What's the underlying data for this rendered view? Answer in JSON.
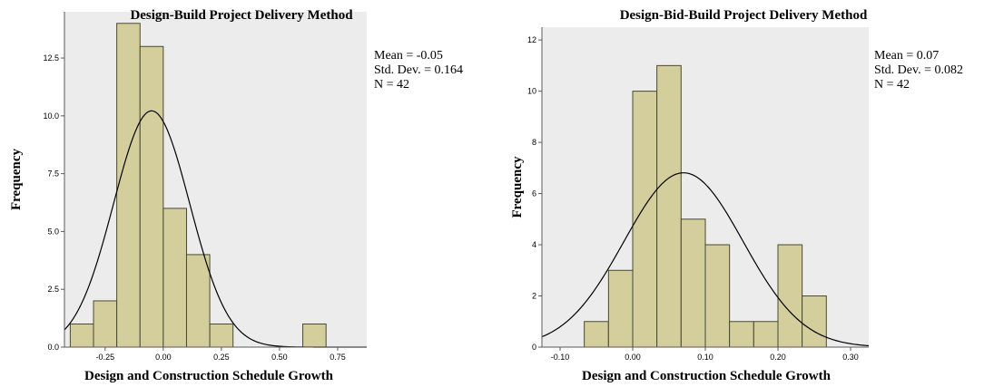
{
  "chart_data": [
    {
      "type": "bar",
      "title": "Design-Build Project Delivery Method",
      "xlabel": "Design and Construction Schedule Growth",
      "ylabel": "Frequency",
      "xlim": [
        -0.425,
        0.875
      ],
      "ylim": [
        0,
        14.5
      ],
      "x_ticks": [
        -0.25,
        0.0,
        0.25,
        0.5,
        0.75
      ],
      "x_tick_labels": [
        "-0.25",
        "0.00",
        "0.25",
        "0.50",
        "0.75"
      ],
      "y_ticks": [
        0,
        2.5,
        5,
        7.5,
        10,
        12.5
      ],
      "y_tick_labels": [
        "0.0",
        "2.5",
        "5.0",
        "7.5",
        "10.0",
        "12.5"
      ],
      "bin_width": 0.1,
      "bins": [
        {
          "start": -0.4,
          "count": 1
        },
        {
          "start": -0.3,
          "count": 2
        },
        {
          "start": -0.2,
          "count": 14
        },
        {
          "start": -0.1,
          "count": 13
        },
        {
          "start": 0.0,
          "count": 6
        },
        {
          "start": 0.1,
          "count": 4
        },
        {
          "start": 0.2,
          "count": 1
        },
        {
          "start": 0.6,
          "count": 1
        }
      ],
      "normal_curve": true,
      "stats": {
        "mean": -0.05,
        "sd": 0.164,
        "n": 42
      },
      "stats_text": [
        "Mean = -0.05",
        "Std. Dev. = 0.164",
        "N = 42"
      ]
    },
    {
      "type": "bar",
      "title": "Design-Bid-Build Project Delivery Method",
      "xlabel": "Design and Construction Schedule Growth",
      "ylabel": "Frequency",
      "xlim": [
        -0.125,
        0.325
      ],
      "ylim": [
        0,
        12.5
      ],
      "x_ticks": [
        -0.1,
        0.0,
        0.1,
        0.2,
        0.3
      ],
      "x_tick_labels": [
        "-0.10",
        "0.00",
        "0.10",
        "0.20",
        "0.30"
      ],
      "y_ticks": [
        0,
        2,
        4,
        6,
        8,
        10,
        12
      ],
      "y_tick_labels": [
        "0",
        "2",
        "4",
        "6",
        "8",
        "10",
        "12"
      ],
      "bin_width": 0.03333,
      "bins": [
        {
          "start": -0.0667,
          "count": 1
        },
        {
          "start": -0.0333,
          "count": 3
        },
        {
          "start": 0.0,
          "count": 10
        },
        {
          "start": 0.0333,
          "count": 11
        },
        {
          "start": 0.0667,
          "count": 5
        },
        {
          "start": 0.1,
          "count": 4
        },
        {
          "start": 0.1333,
          "count": 1
        },
        {
          "start": 0.1667,
          "count": 1
        },
        {
          "start": 0.2,
          "count": 4
        },
        {
          "start": 0.2333,
          "count": 2
        }
      ],
      "normal_curve": true,
      "stats": {
        "mean": 0.07,
        "sd": 0.082,
        "n": 42
      },
      "stats_text": [
        "Mean = 0.07",
        "Std. Dev. = 0.082",
        "N = 42"
      ]
    }
  ],
  "colors": {
    "plot_bg": "#ECECEC",
    "bar_fill": "#D3CE9B",
    "bar_stroke": "#4A4A30",
    "curve": "#000000",
    "frame": "#5A5A5A"
  }
}
